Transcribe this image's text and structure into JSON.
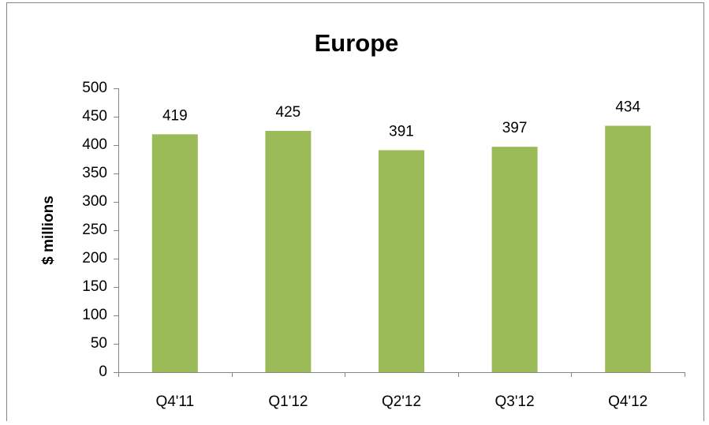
{
  "chart_data": {
    "type": "bar",
    "title": "Europe",
    "y_label": "$ millions",
    "categories": [
      "Q4'11",
      "Q1'12",
      "Q2'12",
      "Q3'12",
      "Q4'12"
    ],
    "values": [
      419,
      425,
      391,
      397,
      434
    ],
    "color": "#9bbb59",
    "ylim": [
      0,
      500
    ],
    "yticks": [
      0,
      50,
      100,
      150,
      200,
      250,
      300,
      350,
      400,
      450,
      500
    ],
    "grid": false
  }
}
